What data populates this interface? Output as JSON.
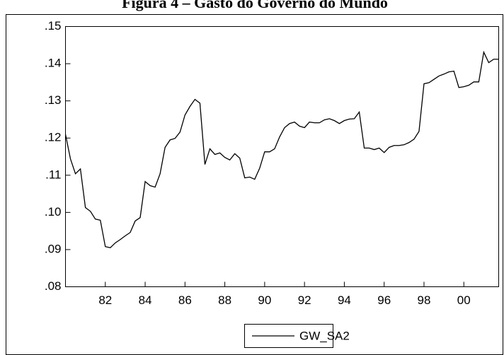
{
  "chart_data": {
    "type": "line",
    "title": "Figura 4 – Gasto do Governo do Mundo",
    "x_start": 1980,
    "x_step": 0.25,
    "xlim": [
      1980,
      2001.75
    ],
    "xticks": [
      {
        "value": 1982,
        "label": "82"
      },
      {
        "value": 1984,
        "label": "84"
      },
      {
        "value": 1986,
        "label": "86"
      },
      {
        "value": 1988,
        "label": "88"
      },
      {
        "value": 1990,
        "label": "90"
      },
      {
        "value": 1992,
        "label": "92"
      },
      {
        "value": 1994,
        "label": "94"
      },
      {
        "value": 1996,
        "label": "96"
      },
      {
        "value": 1998,
        "label": "98"
      },
      {
        "value": 2000,
        "label": "00"
      }
    ],
    "ylim": [
      0.08,
      0.15
    ],
    "yticks": [
      {
        "value": 0.08,
        "label": ".08"
      },
      {
        "value": 0.09,
        "label": ".09"
      },
      {
        "value": 0.1,
        "label": ".10"
      },
      {
        "value": 0.11,
        "label": ".11"
      },
      {
        "value": 0.12,
        "label": ".12"
      },
      {
        "value": 0.13,
        "label": ".13"
      },
      {
        "value": 0.14,
        "label": ".14"
      },
      {
        "value": 0.15,
        "label": ".15"
      }
    ],
    "series": [
      {
        "name": "GW_SA2",
        "color": "#000000",
        "values": [
          0.121,
          0.1144,
          0.1104,
          0.1117,
          0.1013,
          0.1003,
          0.0982,
          0.0979,
          0.0908,
          0.0905,
          0.0918,
          0.0927,
          0.0937,
          0.0946,
          0.0977,
          0.0986,
          0.1083,
          0.1072,
          0.1068,
          0.1104,
          0.1175,
          0.1195,
          0.1199,
          0.1216,
          0.1262,
          0.1285,
          0.1304,
          0.1294,
          0.1129,
          0.1171,
          0.1156,
          0.116,
          0.1148,
          0.1141,
          0.1158,
          0.1146,
          0.1093,
          0.1095,
          0.1089,
          0.1119,
          0.1163,
          0.1163,
          0.1171,
          0.1203,
          0.1228,
          0.1239,
          0.1243,
          0.1232,
          0.1228,
          0.1243,
          0.1241,
          0.1241,
          0.1249,
          0.1252,
          0.1247,
          0.1239,
          0.1247,
          0.1251,
          0.1252,
          0.127,
          0.1173,
          0.1173,
          0.1169,
          0.1173,
          0.1161,
          0.1175,
          0.118,
          0.118,
          0.1182,
          0.1188,
          0.1197,
          0.1218,
          0.1346,
          0.1349,
          0.1358,
          0.1367,
          0.1372,
          0.1378,
          0.138,
          0.1336,
          0.1338,
          0.1342,
          0.1351,
          0.1351,
          0.1431,
          0.1403,
          0.1412,
          0.1412
        ]
      }
    ]
  }
}
